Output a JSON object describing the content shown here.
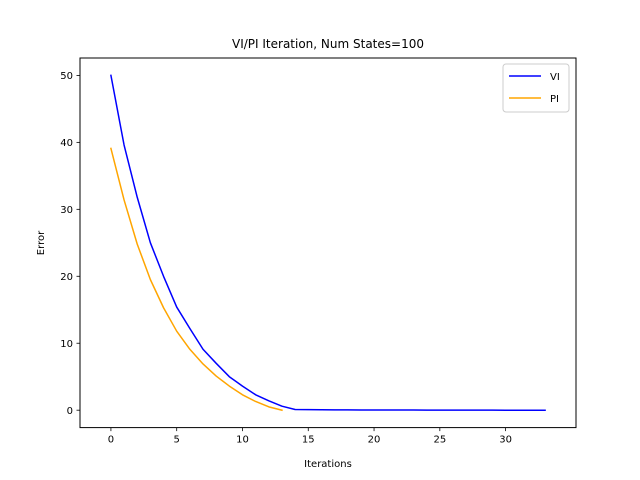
{
  "chart_data": {
    "type": "line",
    "title": "VI/PI Iteration, Num States=100",
    "xlabel": "Iterations",
    "ylabel": "Error",
    "xlim": [
      -2.35,
      35.35
    ],
    "ylim": [
      -2.6,
      52.6
    ],
    "xticks": [
      0,
      5,
      10,
      15,
      20,
      25,
      30
    ],
    "yticks": [
      0,
      10,
      20,
      30,
      40,
      50
    ],
    "grid": false,
    "legend_position": "top-right",
    "series": [
      {
        "name": "VI",
        "color": "#0000ff",
        "x": [
          0,
          1,
          2,
          3,
          4,
          5,
          6,
          7,
          8,
          9,
          10,
          11,
          12,
          13,
          14,
          15,
          16,
          17,
          18,
          19,
          20,
          21,
          22,
          23,
          24,
          25,
          26,
          27,
          28,
          29,
          30,
          31,
          32,
          33
        ],
        "y": [
          50,
          39.6,
          31.8,
          25.0,
          20.0,
          15.4,
          12.2,
          9.1,
          7.0,
          5.0,
          3.6,
          2.3,
          1.4,
          0.6,
          0.1,
          0.08,
          0.06,
          0.05,
          0.04,
          0.03,
          0.03,
          0.02,
          0.02,
          0.02,
          0.01,
          0.01,
          0.01,
          0.01,
          0.01,
          0.01,
          0.0,
          0.0,
          0.0,
          0.0
        ]
      },
      {
        "name": "PI",
        "color": "#ffa500",
        "x": [
          0,
          1,
          2,
          3,
          4,
          5,
          6,
          7,
          8,
          9,
          10,
          11,
          12,
          13
        ],
        "y": [
          39.1,
          31.4,
          24.8,
          19.5,
          15.3,
          11.8,
          9.1,
          6.9,
          5.1,
          3.6,
          2.3,
          1.3,
          0.5,
          0.0
        ]
      }
    ]
  }
}
